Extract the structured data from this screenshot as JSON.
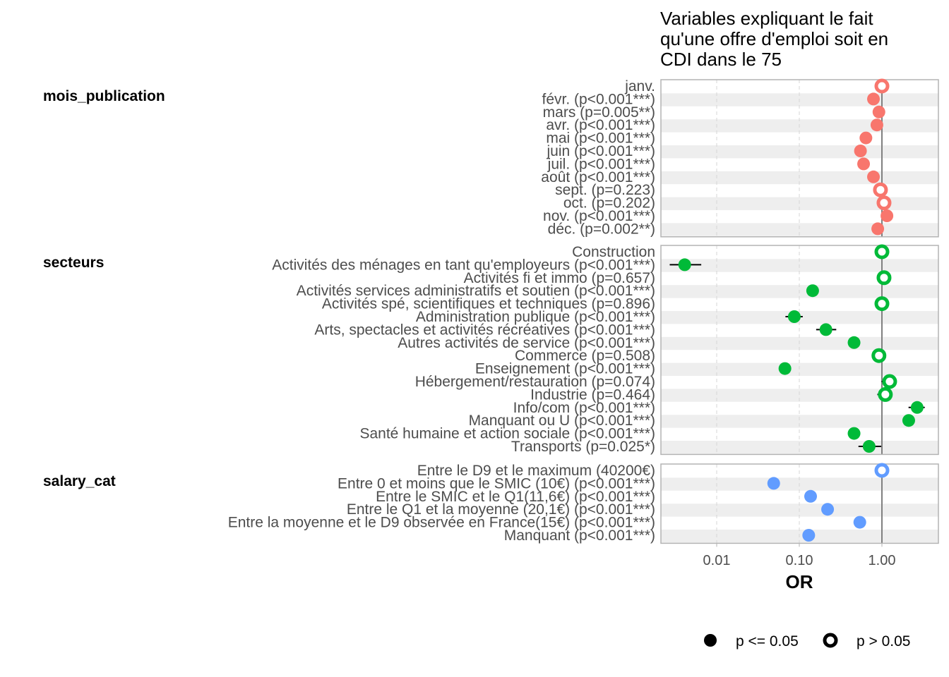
{
  "chart_data": {
    "type": "scatter",
    "subtype": "forest-plot",
    "title": "Variables expliquant le fait qu'une offre d'emploi soit en CDI dans le 75",
    "title_lines": [
      "Variables expliquant le fait",
      "qu'une offre d'emploi soit en",
      "CDI dans le 75"
    ],
    "xlabel": "OR",
    "ylabel": "",
    "x_scale": "log10",
    "xlim": [
      0.0021,
      4.8
    ],
    "x_ticks": [
      0.01,
      0.1,
      1.0
    ],
    "x_tick_labels": [
      "0.01",
      "0.10",
      "1.00"
    ],
    "reference_line": 1.0,
    "grid": "vertical dashed at ticks, alternating grey row bands",
    "legend": {
      "placement": "bottom-right",
      "items": [
        {
          "label": "p <= 0.05",
          "symbol": "filled-circle"
        },
        {
          "label": "p > 0.05",
          "symbol": "hollow-circle"
        }
      ]
    },
    "groups": [
      {
        "name": "mois_publication",
        "color": "#F8766D",
        "rows": [
          {
            "label": "janv.",
            "or": 1.0,
            "ci": null,
            "significant": false
          },
          {
            "label": "févr. (p<0.001***)",
            "or": 0.79,
            "ci": null,
            "significant": true
          },
          {
            "label": "mars (p=0.005**)",
            "or": 0.92,
            "ci": null,
            "significant": true
          },
          {
            "label": "avr. (p<0.001***)",
            "or": 0.87,
            "ci": null,
            "significant": true
          },
          {
            "label": "mai (p<0.001***)",
            "or": 0.64,
            "ci": null,
            "significant": true
          },
          {
            "label": "juin (p<0.001***)",
            "or": 0.55,
            "ci": null,
            "significant": true
          },
          {
            "label": "juil. (p<0.001***)",
            "or": 0.6,
            "ci": null,
            "significant": true
          },
          {
            "label": "août (p<0.001***)",
            "or": 0.79,
            "ci": null,
            "significant": true
          },
          {
            "label": "sept. (p=0.223)",
            "or": 0.96,
            "ci": null,
            "significant": false
          },
          {
            "label": "oct. (p=0.202)",
            "or": 1.06,
            "ci": null,
            "significant": false
          },
          {
            "label": "nov. (p<0.001***)",
            "or": 1.15,
            "ci": null,
            "significant": true
          },
          {
            "label": "déc. (p=0.002**)",
            "or": 0.89,
            "ci": null,
            "significant": true
          }
        ]
      },
      {
        "name": "secteurs",
        "color": "#00BA38",
        "rows": [
          {
            "label": "Construction",
            "or": 1.0,
            "ci": null,
            "significant": false
          },
          {
            "label": "Activités des ménages en tant qu'employeurs (p<0.001***)",
            "or": 0.0041,
            "ci": [
              0.0027,
              0.0065
            ],
            "significant": true
          },
          {
            "label": "Activités fi et immo (p=0.657)",
            "or": 1.06,
            "ci": [
              0.95,
              1.17
            ],
            "significant": false
          },
          {
            "label": "Activités services administratifs et soutien (p<0.001***)",
            "or": 0.145,
            "ci": [
              0.125,
              0.16
            ],
            "significant": true
          },
          {
            "label": "Activités spé, scientifiques et techniques (p=0.896)",
            "or": 1.0,
            "ci": null,
            "significant": false
          },
          {
            "label": "Administration publique (p<0.001***)",
            "or": 0.087,
            "ci": [
              0.068,
              0.11
            ],
            "significant": true
          },
          {
            "label": "Arts, spectacles et activités récréatives (p<0.001***)",
            "or": 0.21,
            "ci": [
              0.16,
              0.28
            ],
            "significant": true
          },
          {
            "label": "Autres activités de service (p<0.001***)",
            "or": 0.46,
            "ci": [
              0.39,
              0.53
            ],
            "significant": true
          },
          {
            "label": "Commerce (p=0.508)",
            "or": 0.92,
            "ci": null,
            "significant": false
          },
          {
            "label": "Enseignement (p<0.001***)",
            "or": 0.067,
            "ci": [
              0.057,
              0.078
            ],
            "significant": true
          },
          {
            "label": "Hébergement/restauration (p=0.074)",
            "or": 1.24,
            "ci": [
              0.99,
              1.5
            ],
            "significant": false
          },
          {
            "label": "Industrie (p=0.464)",
            "or": 1.1,
            "ci": [
              0.88,
              1.3
            ],
            "significant": false
          },
          {
            "label": "Info/com (p<0.001***)",
            "or": 2.67,
            "ci": [
              2.1,
              3.3
            ],
            "significant": true
          },
          {
            "label": "Manquant ou U (p<0.001***)",
            "or": 2.11,
            "ci": [
              1.9,
              2.4
            ],
            "significant": true
          },
          {
            "label": "Santé humaine et action sociale (p<0.001***)",
            "or": 0.46,
            "ci": [
              0.39,
              0.54
            ],
            "significant": true
          },
          {
            "label": "Transports (p=0.025*)",
            "or": 0.7,
            "ci": [
              0.52,
              0.98
            ],
            "significant": true
          }
        ]
      },
      {
        "name": "salary_cat",
        "color": "#619CFF",
        "rows": [
          {
            "label": "Entre le D9 et le maximum (40200€)",
            "or": 1.0,
            "ci": null,
            "significant": false
          },
          {
            "label": "Entre 0 et moins que le SMIC (10€) (p<0.001***)",
            "or": 0.049,
            "ci": [
              0.045,
              0.053
            ],
            "significant": true
          },
          {
            "label": "Entre le SMIC et le Q1(11,6€) (p<0.001***)",
            "or": 0.137,
            "ci": null,
            "significant": true
          },
          {
            "label": "Entre le Q1 et la moyenne (20,1€) (p<0.001***)",
            "or": 0.22,
            "ci": null,
            "significant": true
          },
          {
            "label": "Entre la moyenne et le D9 observée en France(15€) (p<0.001***)",
            "or": 0.54,
            "ci": null,
            "significant": true
          },
          {
            "label": "Manquant (p<0.001***)",
            "or": 0.13,
            "ci": null,
            "significant": true
          }
        ]
      }
    ]
  }
}
